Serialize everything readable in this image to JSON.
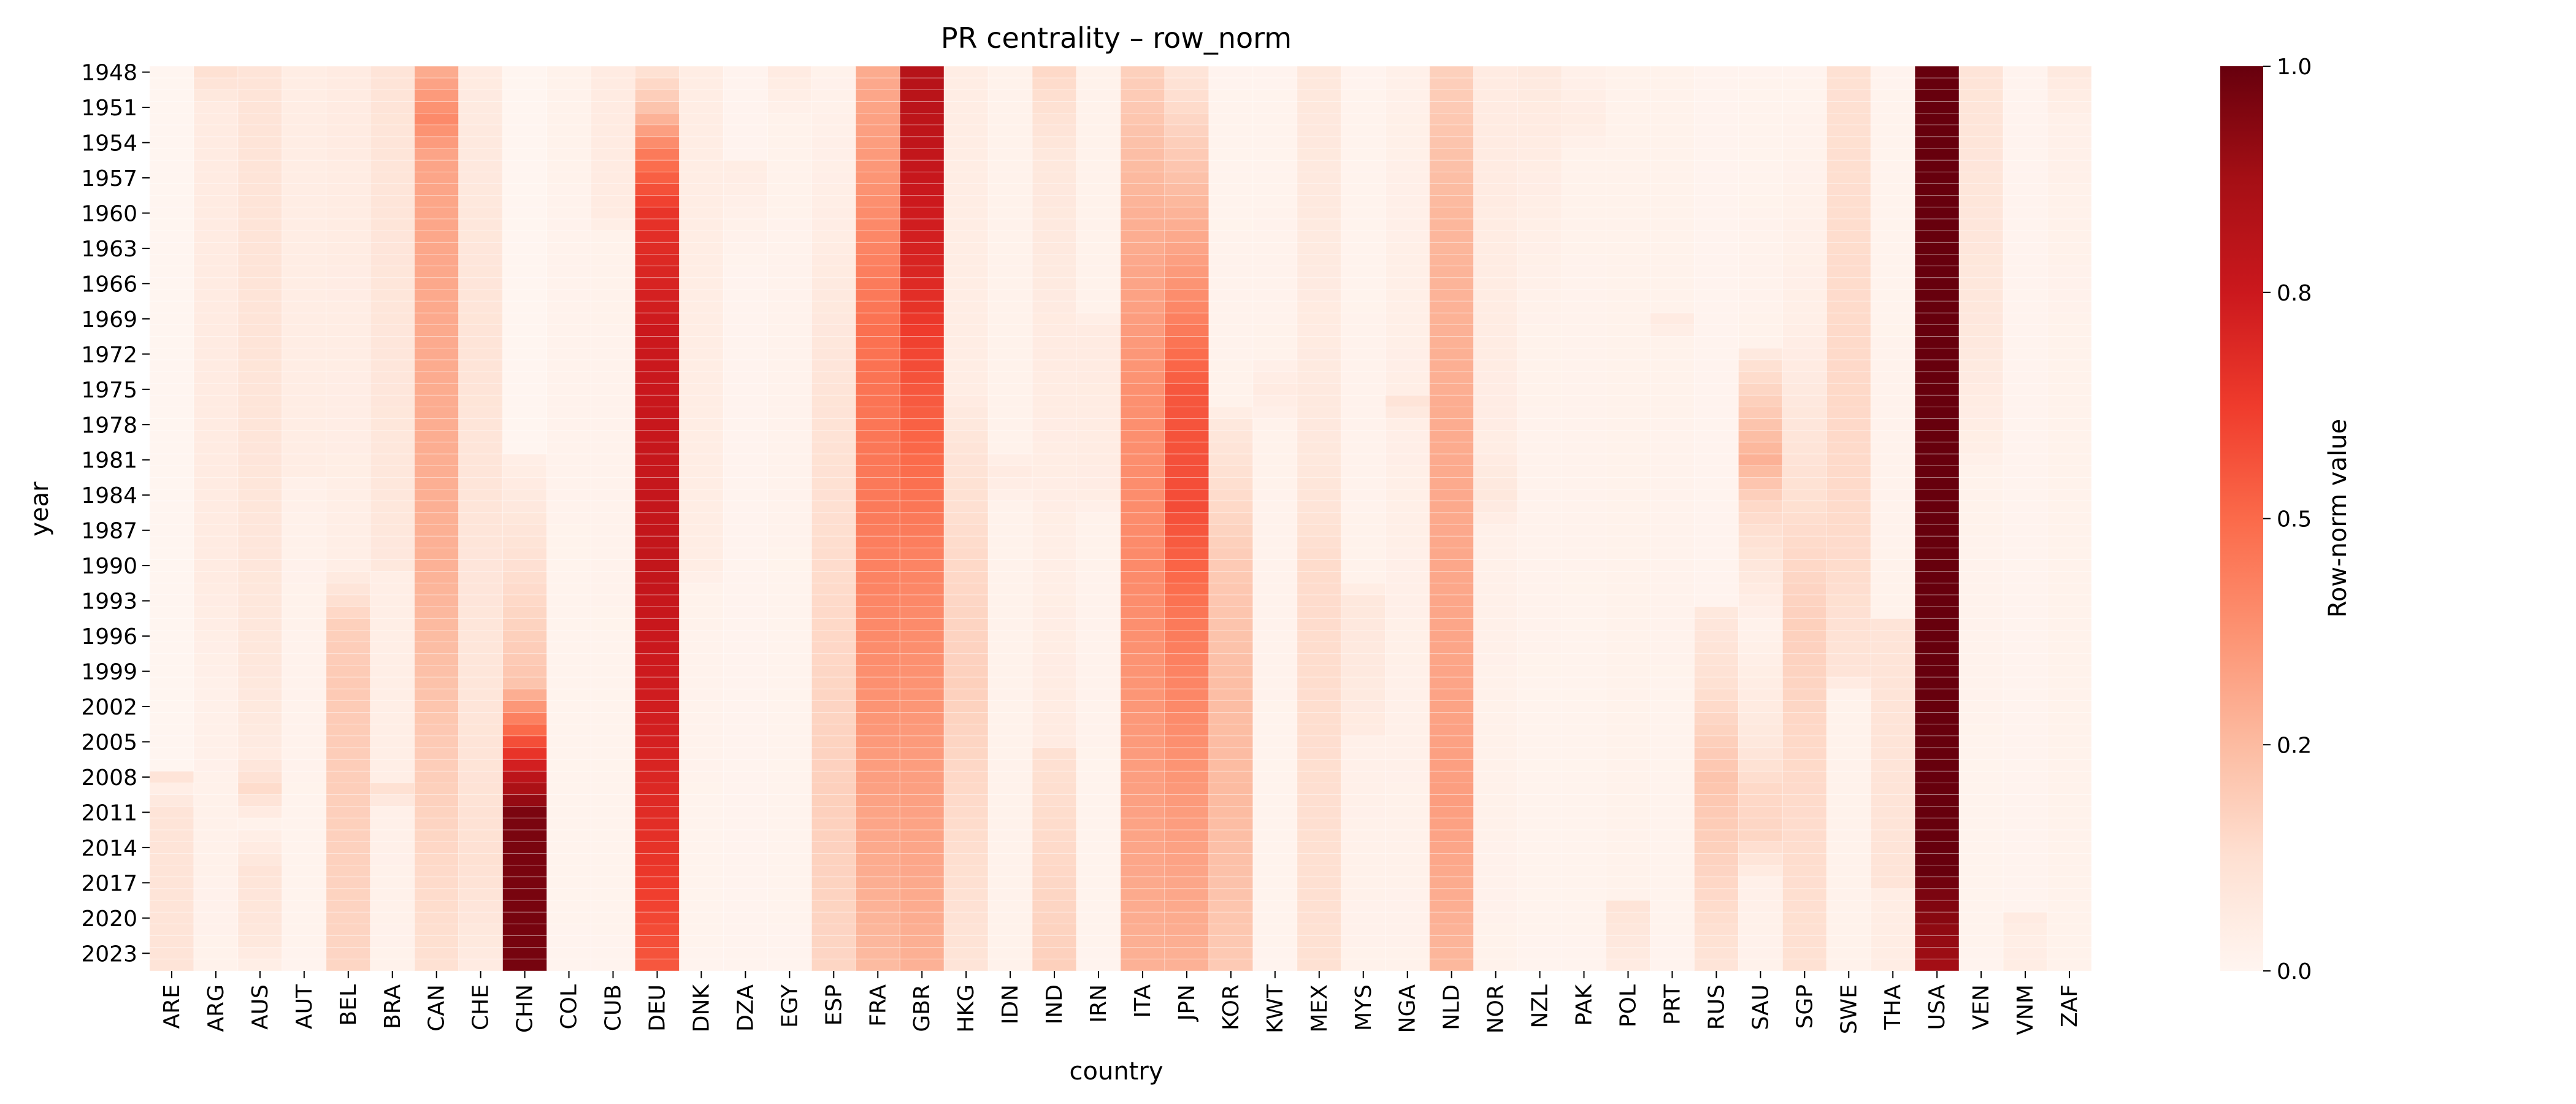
{
  "chart_data": {
    "type": "heatmap",
    "title": "PR centrality – row_norm",
    "xlabel": "country",
    "ylabel": "year",
    "colorbar_label": "Row-norm value",
    "colormap": "Reds",
    "vmin": 0,
    "vmax": 1,
    "colorbar_ticks": [
      "0.0",
      "0.2",
      "0.5",
      "0.8",
      "1.0"
    ],
    "colorbar_tick_values": [
      0.0,
      0.25,
      0.5,
      0.75,
      1.0
    ],
    "year_range": [
      1948,
      2024
    ],
    "ytick_labels": [
      "1948",
      "1951",
      "1954",
      "1957",
      "1960",
      "1963",
      "1966",
      "1969",
      "1972",
      "1975",
      "1978",
      "1981",
      "1984",
      "1987",
      "1990",
      "1993",
      "1996",
      "1999",
      "2002",
      "2005",
      "2008",
      "2011",
      "2014",
      "2017",
      "2020",
      "2023"
    ],
    "countries": [
      "ARE",
      "ARG",
      "AUS",
      "AUT",
      "BEL",
      "BRA",
      "CAN",
      "CHE",
      "CHN",
      "COL",
      "CUB",
      "DEU",
      "DNK",
      "DZA",
      "EGY",
      "ESP",
      "FRA",
      "GBR",
      "HKG",
      "IDN",
      "IND",
      "IRN",
      "ITA",
      "JPN",
      "KOR",
      "KWT",
      "MEX",
      "MYS",
      "NGA",
      "NLD",
      "NOR",
      "NZL",
      "PAK",
      "POL",
      "PRT",
      "RUS",
      "SAU",
      "SGP",
      "SWE",
      "THA",
      "USA",
      "VEN",
      "VNM",
      "ZAF"
    ],
    "series_keyframes": {
      "ARE": [
        [
          1948,
          0.0
        ],
        [
          2007,
          0.0
        ],
        [
          2008,
          0.1
        ],
        [
          2009,
          0.04
        ],
        [
          2011,
          0.1
        ],
        [
          2024,
          0.1
        ]
      ],
      "ARG": [
        [
          1948,
          0.12
        ],
        [
          1951,
          0.06
        ],
        [
          1990,
          0.06
        ],
        [
          2000,
          0.03
        ],
        [
          2024,
          0.02
        ]
      ],
      "AUS": [
        [
          1948,
          0.1
        ],
        [
          1970,
          0.1
        ],
        [
          2000,
          0.08
        ],
        [
          2006,
          0.06
        ],
        [
          2009,
          0.14
        ],
        [
          2012,
          0.02
        ],
        [
          2016,
          0.1
        ],
        [
          2022,
          0.08
        ],
        [
          2024,
          0.04
        ]
      ],
      "AUT": [
        [
          1948,
          0.05
        ],
        [
          1982,
          0.05
        ],
        [
          1983,
          0.03
        ],
        [
          1992,
          0.02
        ],
        [
          2024,
          0.01
        ]
      ],
      "BEL": [
        [
          1948,
          0.06
        ],
        [
          1990,
          0.04
        ],
        [
          1995,
          0.18
        ],
        [
          2000,
          0.2
        ],
        [
          2024,
          0.16
        ]
      ],
      "BRA": [
        [
          1948,
          0.1
        ],
        [
          1990,
          0.08
        ],
        [
          1991,
          0.04
        ],
        [
          2008,
          0.04
        ],
        [
          2009,
          0.12
        ],
        [
          2011,
          0.03
        ],
        [
          2024,
          0.02
        ]
      ],
      "CAN": [
        [
          1948,
          0.3
        ],
        [
          1952,
          0.4
        ],
        [
          1955,
          0.32
        ],
        [
          1990,
          0.28
        ],
        [
          2005,
          0.2
        ],
        [
          2015,
          0.15
        ],
        [
          2024,
          0.12
        ]
      ],
      "CHE": [
        [
          1948,
          0.06
        ],
        [
          1970,
          0.1
        ],
        [
          2000,
          0.09
        ],
        [
          2015,
          0.12
        ],
        [
          2024,
          0.06
        ]
      ],
      "CHN": [
        [
          1948,
          0.0
        ],
        [
          1980,
          0.0
        ],
        [
          1981,
          0.04
        ],
        [
          1993,
          0.15
        ],
        [
          2000,
          0.22
        ],
        [
          2004,
          0.5
        ],
        [
          2008,
          0.8
        ],
        [
          2011,
          0.96
        ],
        [
          2024,
          0.97
        ]
      ],
      "COL": [
        [
          1948,
          0.02
        ],
        [
          2024,
          0.01
        ]
      ],
      "CUB": [
        [
          1948,
          0.06
        ],
        [
          1960,
          0.06
        ],
        [
          1962,
          0.02
        ],
        [
          2024,
          0.01
        ]
      ],
      "DEU": [
        [
          1948,
          0.12
        ],
        [
          1951,
          0.22
        ],
        [
          1955,
          0.45
        ],
        [
          1960,
          0.65
        ],
        [
          1970,
          0.75
        ],
        [
          1990,
          0.78
        ],
        [
          2005,
          0.72
        ],
        [
          2015,
          0.65
        ],
        [
          2024,
          0.55
        ]
      ],
      "DNK": [
        [
          1948,
          0.05
        ],
        [
          1990,
          0.05
        ],
        [
          1992,
          0.02
        ],
        [
          2024,
          0.01
        ]
      ],
      "DZA": [
        [
          1948,
          0.01
        ],
        [
          1955,
          0.01
        ],
        [
          1956,
          0.05
        ],
        [
          1960,
          0.03
        ],
        [
          1965,
          0.01
        ],
        [
          2024,
          0.01
        ]
      ],
      "EGY": [
        [
          1948,
          0.06
        ],
        [
          1952,
          0.02
        ],
        [
          2024,
          0.01
        ]
      ],
      "ESP": [
        [
          1948,
          0.02
        ],
        [
          1962,
          0.05
        ],
        [
          1975,
          0.1
        ],
        [
          1995,
          0.15
        ],
        [
          2010,
          0.18
        ],
        [
          2024,
          0.16
        ]
      ],
      "FRA": [
        [
          1948,
          0.3
        ],
        [
          1955,
          0.35
        ],
        [
          1970,
          0.48
        ],
        [
          1985,
          0.45
        ],
        [
          2000,
          0.38
        ],
        [
          2015,
          0.3
        ],
        [
          2024,
          0.25
        ]
      ],
      "GBR": [
        [
          1948,
          0.82
        ],
        [
          1955,
          0.78
        ],
        [
          1965,
          0.7
        ],
        [
          1975,
          0.55
        ],
        [
          1990,
          0.42
        ],
        [
          2005,
          0.35
        ],
        [
          2024,
          0.28
        ]
      ],
      "HKG": [
        [
          1948,
          0.05
        ],
        [
          1975,
          0.05
        ],
        [
          1980,
          0.1
        ],
        [
          1990,
          0.15
        ],
        [
          2000,
          0.18
        ],
        [
          2024,
          0.1
        ]
      ],
      "IDN": [
        [
          1948,
          0.02
        ],
        [
          1980,
          0.02
        ],
        [
          1982,
          0.06
        ],
        [
          1985,
          0.02
        ],
        [
          2024,
          0.02
        ]
      ],
      "IND": [
        [
          1948,
          0.15
        ],
        [
          1955,
          0.08
        ],
        [
          1970,
          0.06
        ],
        [
          1990,
          0.04
        ],
        [
          2005,
          0.06
        ],
        [
          2006,
          0.12
        ],
        [
          2024,
          0.18
        ]
      ],
      "IRN": [
        [
          1948,
          0.02
        ],
        [
          1968,
          0.02
        ],
        [
          1970,
          0.06
        ],
        [
          1984,
          0.05
        ],
        [
          1986,
          0.02
        ],
        [
          2024,
          0.01
        ]
      ],
      "ITA": [
        [
          1948,
          0.18
        ],
        [
          1960,
          0.28
        ],
        [
          1975,
          0.38
        ],
        [
          1990,
          0.4
        ],
        [
          2005,
          0.35
        ],
        [
          2024,
          0.28
        ]
      ],
      "JPN": [
        [
          1948,
          0.1
        ],
        [
          1955,
          0.2
        ],
        [
          1965,
          0.35
        ],
        [
          1975,
          0.55
        ],
        [
          1985,
          0.58
        ],
        [
          1995,
          0.45
        ],
        [
          2010,
          0.35
        ],
        [
          2024,
          0.28
        ]
      ],
      "KOR": [
        [
          1948,
          0.01
        ],
        [
          1976,
          0.02
        ],
        [
          1978,
          0.08
        ],
        [
          1990,
          0.2
        ],
        [
          2000,
          0.24
        ],
        [
          2010,
          0.25
        ],
        [
          2024,
          0.2
        ]
      ],
      "KWT": [
        [
          1948,
          0.01
        ],
        [
          1972,
          0.02
        ],
        [
          1975,
          0.06
        ],
        [
          1978,
          0.02
        ],
        [
          2024,
          0.01
        ]
      ],
      "MEX": [
        [
          1948,
          0.08
        ],
        [
          1970,
          0.06
        ],
        [
          1981,
          0.08
        ],
        [
          1985,
          0.1
        ],
        [
          1990,
          0.14
        ],
        [
          2024,
          0.12
        ]
      ],
      "MYS": [
        [
          1948,
          0.01
        ],
        [
          1991,
          0.02
        ],
        [
          1993,
          0.08
        ],
        [
          2004,
          0.06
        ],
        [
          2005,
          0.03
        ],
        [
          2024,
          0.02
        ]
      ],
      "NGA": [
        [
          1948,
          0.03
        ],
        [
          1975,
          0.04
        ],
        [
          1976,
          0.1
        ],
        [
          1978,
          0.04
        ],
        [
          2024,
          0.02
        ]
      ],
      "NLD": [
        [
          1948,
          0.18
        ],
        [
          1960,
          0.26
        ],
        [
          1980,
          0.3
        ],
        [
          2000,
          0.32
        ],
        [
          2010,
          0.34
        ],
        [
          2024,
          0.26
        ]
      ],
      "NOR": [
        [
          1948,
          0.06
        ],
        [
          1980,
          0.05
        ],
        [
          1984,
          0.08
        ],
        [
          1987,
          0.03
        ],
        [
          2024,
          0.02
        ]
      ],
      "NZL": [
        [
          1948,
          0.07
        ],
        [
          1960,
          0.04
        ],
        [
          1970,
          0.02
        ],
        [
          2024,
          0.01
        ]
      ],
      "PAK": [
        [
          1948,
          0.03
        ],
        [
          1952,
          0.05
        ],
        [
          1955,
          0.02
        ],
        [
          2024,
          0.01
        ]
      ],
      "POL": [
        [
          1948,
          0.02
        ],
        [
          2018,
          0.02
        ],
        [
          2019,
          0.1
        ],
        [
          2024,
          0.06
        ]
      ],
      "PRT": [
        [
          1948,
          0.02
        ],
        [
          1968,
          0.02
        ],
        [
          1969,
          0.06
        ],
        [
          1971,
          0.02
        ],
        [
          2024,
          0.01
        ]
      ],
      "RUS": [
        [
          1948,
          0.01
        ],
        [
          1993,
          0.01
        ],
        [
          1994,
          0.08
        ],
        [
          2000,
          0.12
        ],
        [
          2008,
          0.22
        ],
        [
          2014,
          0.18
        ],
        [
          2024,
          0.1
        ]
      ],
      "SAU": [
        [
          1948,
          0.01
        ],
        [
          1971,
          0.02
        ],
        [
          1973,
          0.12
        ],
        [
          1981,
          0.28
        ],
        [
          1985,
          0.15
        ],
        [
          1995,
          0.02
        ],
        [
          2005,
          0.08
        ],
        [
          2009,
          0.15
        ],
        [
          2013,
          0.16
        ],
        [
          2017,
          0.03
        ],
        [
          2024,
          0.02
        ]
      ],
      "SGP": [
        [
          1948,
          0.01
        ],
        [
          1970,
          0.04
        ],
        [
          1980,
          0.1
        ],
        [
          1995,
          0.18
        ],
        [
          2005,
          0.15
        ],
        [
          2024,
          0.12
        ]
      ],
      "SWE": [
        [
          1948,
          0.12
        ],
        [
          1975,
          0.15
        ],
        [
          1990,
          0.14
        ],
        [
          1999,
          0.1
        ],
        [
          2001,
          0.02
        ],
        [
          2024,
          0.02
        ]
      ],
      "THA": [
        [
          1948,
          0.01
        ],
        [
          1994,
          0.02
        ],
        [
          1995,
          0.1
        ],
        [
          2017,
          0.1
        ],
        [
          2018,
          0.05
        ],
        [
          2024,
          0.05
        ]
      ],
      "USA": [
        [
          1948,
          1.0
        ],
        [
          2016,
          1.0
        ],
        [
          2018,
          0.96
        ],
        [
          2021,
          0.92
        ],
        [
          2024,
          0.88
        ]
      ],
      "VEN": [
        [
          1948,
          0.1
        ],
        [
          1970,
          0.08
        ],
        [
          1980,
          0.04
        ],
        [
          1982,
          0.02
        ],
        [
          2024,
          0.01
        ]
      ],
      "VNM": [
        [
          1948,
          0.01
        ],
        [
          2019,
          0.01
        ],
        [
          2020,
          0.06
        ],
        [
          2022,
          0.04
        ],
        [
          2024,
          0.05
        ]
      ],
      "ZAF": [
        [
          1948,
          0.07
        ],
        [
          1952,
          0.03
        ],
        [
          1970,
          0.02
        ],
        [
          2024,
          0.02
        ]
      ]
    }
  }
}
